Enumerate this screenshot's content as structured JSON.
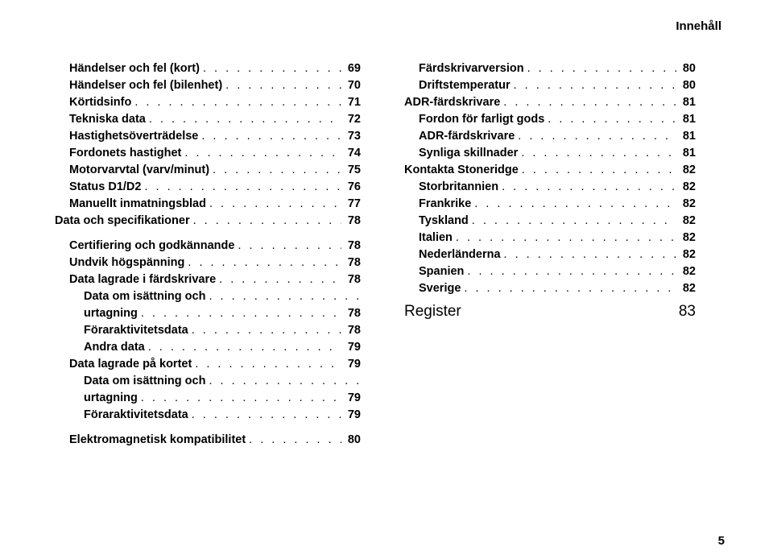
{
  "header": "Innehåll",
  "page_number": "5",
  "left": [
    {
      "label": "Händelser och fel (kort)",
      "page": "69",
      "indent": 1
    },
    {
      "label": "Händelser och fel (bilenhet)",
      "page": "70",
      "indent": 1
    },
    {
      "label": "Körtidsinfo",
      "page": "71",
      "indent": 1
    },
    {
      "label": "Tekniska data",
      "page": "72",
      "indent": 1
    },
    {
      "label": "Hastighetsöverträdelse",
      "page": "73",
      "indent": 1
    },
    {
      "label": "Fordonets hastighet",
      "page": "74",
      "indent": 1
    },
    {
      "label": "Motorvarvtal (varv/minut)",
      "page": "75",
      "indent": 1
    },
    {
      "label": "Status D1/D2",
      "page": "76",
      "indent": 1
    },
    {
      "label": "Manuellt inmatningsblad",
      "page": "77",
      "indent": 1
    },
    {
      "label": "Data och specifikationer",
      "page": "78",
      "indent": 0,
      "gap_after": true
    },
    {
      "label": "Certifiering och godkännande",
      "page": "78",
      "indent": 1
    },
    {
      "label": "Undvik högspänning",
      "page": "78",
      "indent": 1
    },
    {
      "label": "Data lagrade i färdskrivare",
      "page": "78",
      "indent": 1
    },
    {
      "label": "Data om isättning och urtagning",
      "page": "78",
      "indent": 2,
      "wrap": true
    },
    {
      "label": "Föraraktivitetsdata",
      "page": "78",
      "indent": 2
    },
    {
      "label": "Andra data",
      "page": "79",
      "indent": 2
    },
    {
      "label": "Data lagrade på kortet",
      "page": "79",
      "indent": 1
    },
    {
      "label": "Data om isättning och urtagning",
      "page": "79",
      "indent": 2,
      "wrap": true
    },
    {
      "label": "Föraraktivitetsdata",
      "page": "79",
      "indent": 2,
      "gap_after": true
    },
    {
      "label": "Elektromagnetisk kompatibilitet",
      "page": "80",
      "indent": 1
    }
  ],
  "right": [
    {
      "label": "Färdskrivarversion",
      "page": "80",
      "indent": 2
    },
    {
      "label": "Driftstemperatur",
      "page": "80",
      "indent": 2
    },
    {
      "label": "ADR-färdskrivare",
      "page": "81",
      "indent": 1
    },
    {
      "label": "Fordon för farligt gods",
      "page": "81",
      "indent": 2
    },
    {
      "label": "ADR-färdskrivare",
      "page": "81",
      "indent": 2
    },
    {
      "label": "Synliga skillnader",
      "page": "81",
      "indent": 2
    },
    {
      "label": "Kontakta Stoneridge",
      "page": "82",
      "indent": 1
    },
    {
      "label": "Storbritannien",
      "page": "82",
      "indent": 2
    },
    {
      "label": "Frankrike",
      "page": "82",
      "indent": 2
    },
    {
      "label": "Tyskland",
      "page": "82",
      "indent": 2
    },
    {
      "label": "Italien",
      "page": "82",
      "indent": 2
    },
    {
      "label": "Nederländerna",
      "page": "82",
      "indent": 2
    },
    {
      "label": "Spanien",
      "page": "82",
      "indent": 2
    },
    {
      "label": "Sverige",
      "page": "82",
      "indent": 2
    }
  ],
  "section": {
    "label": "Register",
    "page": "83"
  }
}
